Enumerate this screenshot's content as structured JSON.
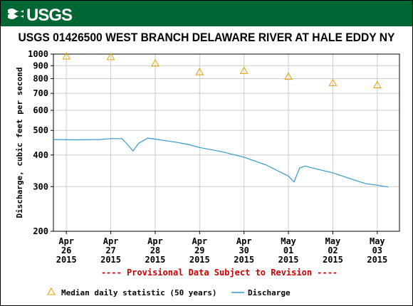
{
  "header": {
    "logo_text": "USGS",
    "banner_color": "#006633",
    "title": "USGS 01426500 WEST BRANCH DELAWARE RIVER AT HALE EDDY NY"
  },
  "notice": "---- Provisional Data Subject to Revision ----",
  "chart_data": {
    "type": "line",
    "title": "USGS 01426500 WEST BRANCH DELAWARE RIVER AT HALE EDDY NY",
    "ylabel": "Discharge, cubic feet per second",
    "xlabel": "",
    "yscale": "log",
    "ylim": [
      200,
      1000
    ],
    "yticks": [
      200,
      300,
      400,
      500,
      600,
      700,
      800,
      900,
      1000
    ],
    "xlim": [
      "2015-04-25T17:00",
      "2015-05-03T12:00"
    ],
    "xticks": [
      {
        "date": "2015-04-26",
        "label": [
          "Apr",
          "26",
          "2015"
        ]
      },
      {
        "date": "2015-04-27",
        "label": [
          "Apr",
          "27",
          "2015"
        ]
      },
      {
        "date": "2015-04-28",
        "label": [
          "Apr",
          "28",
          "2015"
        ]
      },
      {
        "date": "2015-04-29",
        "label": [
          "Apr",
          "29",
          "2015"
        ]
      },
      {
        "date": "2015-04-30",
        "label": [
          "Apr",
          "30",
          "2015"
        ]
      },
      {
        "date": "2015-05-01",
        "label": [
          "May",
          "01",
          "2015"
        ]
      },
      {
        "date": "2015-05-02",
        "label": [
          "May",
          "02",
          "2015"
        ]
      },
      {
        "date": "2015-05-03",
        "label": [
          "May",
          "03",
          "2015"
        ]
      }
    ],
    "grid": true,
    "legend_position": "bottom",
    "series": [
      {
        "name": "Median daily statistic (50 years)",
        "style": "triangle-markers",
        "color": "#e8a000",
        "points": [
          {
            "x": "2015-04-26",
            "y": 980
          },
          {
            "x": "2015-04-27",
            "y": 975
          },
          {
            "x": "2015-04-28",
            "y": 920
          },
          {
            "x": "2015-04-29",
            "y": 850
          },
          {
            "x": "2015-04-30",
            "y": 860
          },
          {
            "x": "2015-05-01",
            "y": 815
          },
          {
            "x": "2015-05-02",
            "y": 770
          },
          {
            "x": "2015-05-03",
            "y": 755
          }
        ]
      },
      {
        "name": "Discharge",
        "style": "line",
        "color": "#3399cc",
        "points": [
          {
            "x": "2015-04-25T17:00",
            "y": 460
          },
          {
            "x": "2015-04-26T06:00",
            "y": 459
          },
          {
            "x": "2015-04-26T18:00",
            "y": 460
          },
          {
            "x": "2015-04-27T00:00",
            "y": 464
          },
          {
            "x": "2015-04-27T06:00",
            "y": 464
          },
          {
            "x": "2015-04-27T09:00",
            "y": 440
          },
          {
            "x": "2015-04-27T12:00",
            "y": 415
          },
          {
            "x": "2015-04-27T15:00",
            "y": 445
          },
          {
            "x": "2015-04-27T20:00",
            "y": 466
          },
          {
            "x": "2015-04-28T00:00",
            "y": 462
          },
          {
            "x": "2015-04-28T06:00",
            "y": 455
          },
          {
            "x": "2015-04-28T12:00",
            "y": 448
          },
          {
            "x": "2015-04-28T18:00",
            "y": 440
          },
          {
            "x": "2015-04-29T00:00",
            "y": 428
          },
          {
            "x": "2015-04-29T12:00",
            "y": 412
          },
          {
            "x": "2015-04-30T00:00",
            "y": 392
          },
          {
            "x": "2015-04-30T12:00",
            "y": 365
          },
          {
            "x": "2015-05-01T00:00",
            "y": 330
          },
          {
            "x": "2015-05-01T03:00",
            "y": 313
          },
          {
            "x": "2015-05-01T06:00",
            "y": 355
          },
          {
            "x": "2015-05-01T09:00",
            "y": 362
          },
          {
            "x": "2015-05-01T12:00",
            "y": 357
          },
          {
            "x": "2015-05-02T00:00",
            "y": 340
          },
          {
            "x": "2015-05-02T12:00",
            "y": 318
          },
          {
            "x": "2015-05-02T18:00",
            "y": 308
          },
          {
            "x": "2015-05-03T00:00",
            "y": 304
          },
          {
            "x": "2015-05-03T02:00",
            "y": 302
          },
          {
            "x": "2015-05-03T06:00",
            "y": 299
          }
        ]
      }
    ]
  }
}
